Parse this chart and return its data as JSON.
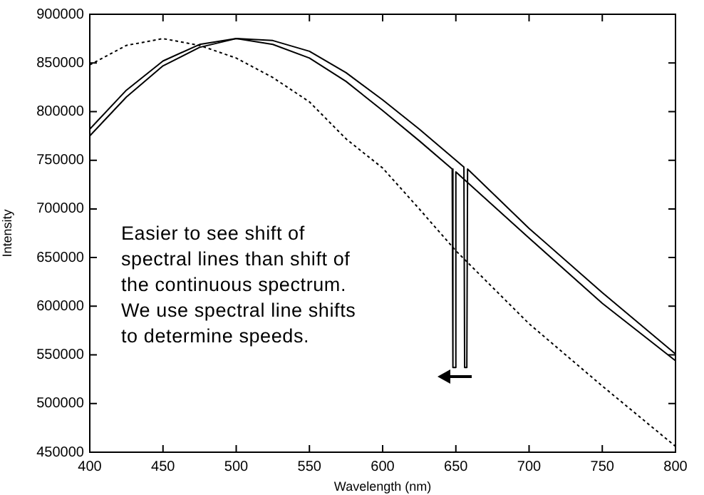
{
  "chart_data": {
    "type": "line",
    "xlabel": "Wavelength (nm)",
    "ylabel": "Intensity",
    "xlim": [
      400,
      800
    ],
    "xticks": [
      400,
      450,
      500,
      550,
      600,
      650,
      700,
      750,
      800
    ],
    "ylim": [
      450000,
      900000
    ],
    "yticks": [
      450000,
      500000,
      550000,
      600000,
      650000,
      700000,
      750000,
      800000,
      850000,
      900000
    ],
    "grid": false,
    "legend": false,
    "marker": "none",
    "series": [
      {
        "color": "#000000",
        "line_style": "solid",
        "x": [
          400,
          425,
          450,
          475,
          500,
          525,
          550,
          575,
          600,
          625,
          655.5,
          656,
          657.5,
          658,
          700,
          750,
          800
        ],
        "values": [
          775000,
          815000,
          847000,
          866000,
          875000,
          873000,
          862000,
          840000,
          812000,
          782000,
          743000,
          537000,
          537000,
          741000,
          680000,
          614000,
          551000
        ]
      },
      {
        "color": "#000000",
        "line_style": "solid",
        "x": [
          400,
          425,
          450,
          475,
          500,
          525,
          550,
          575,
          600,
          625,
          647.5,
          648,
          649.5,
          650,
          700,
          750,
          800
        ],
        "values": [
          782000,
          822000,
          852000,
          869000,
          875000,
          869000,
          855000,
          831000,
          801000,
          770000,
          741000,
          537000,
          537000,
          738000,
          670000,
          603000,
          544000
        ]
      },
      {
        "color": "#000000",
        "line_style": "dashed",
        "x": [
          400,
          425,
          450,
          475,
          500,
          525,
          550,
          575,
          600,
          625,
          650,
          700,
          750,
          800
        ],
        "values": [
          848000,
          868000,
          875000,
          868000,
          855000,
          835000,
          810000,
          772000,
          742000,
          700000,
          657000,
          582000,
          518000,
          456000
        ]
      }
    ],
    "annotations": [
      "Easier to see shift of\nspectral lines than shift of\nthe continuous spectrum.\nWe use spectral line shifts\nto determine speeds."
    ]
  }
}
